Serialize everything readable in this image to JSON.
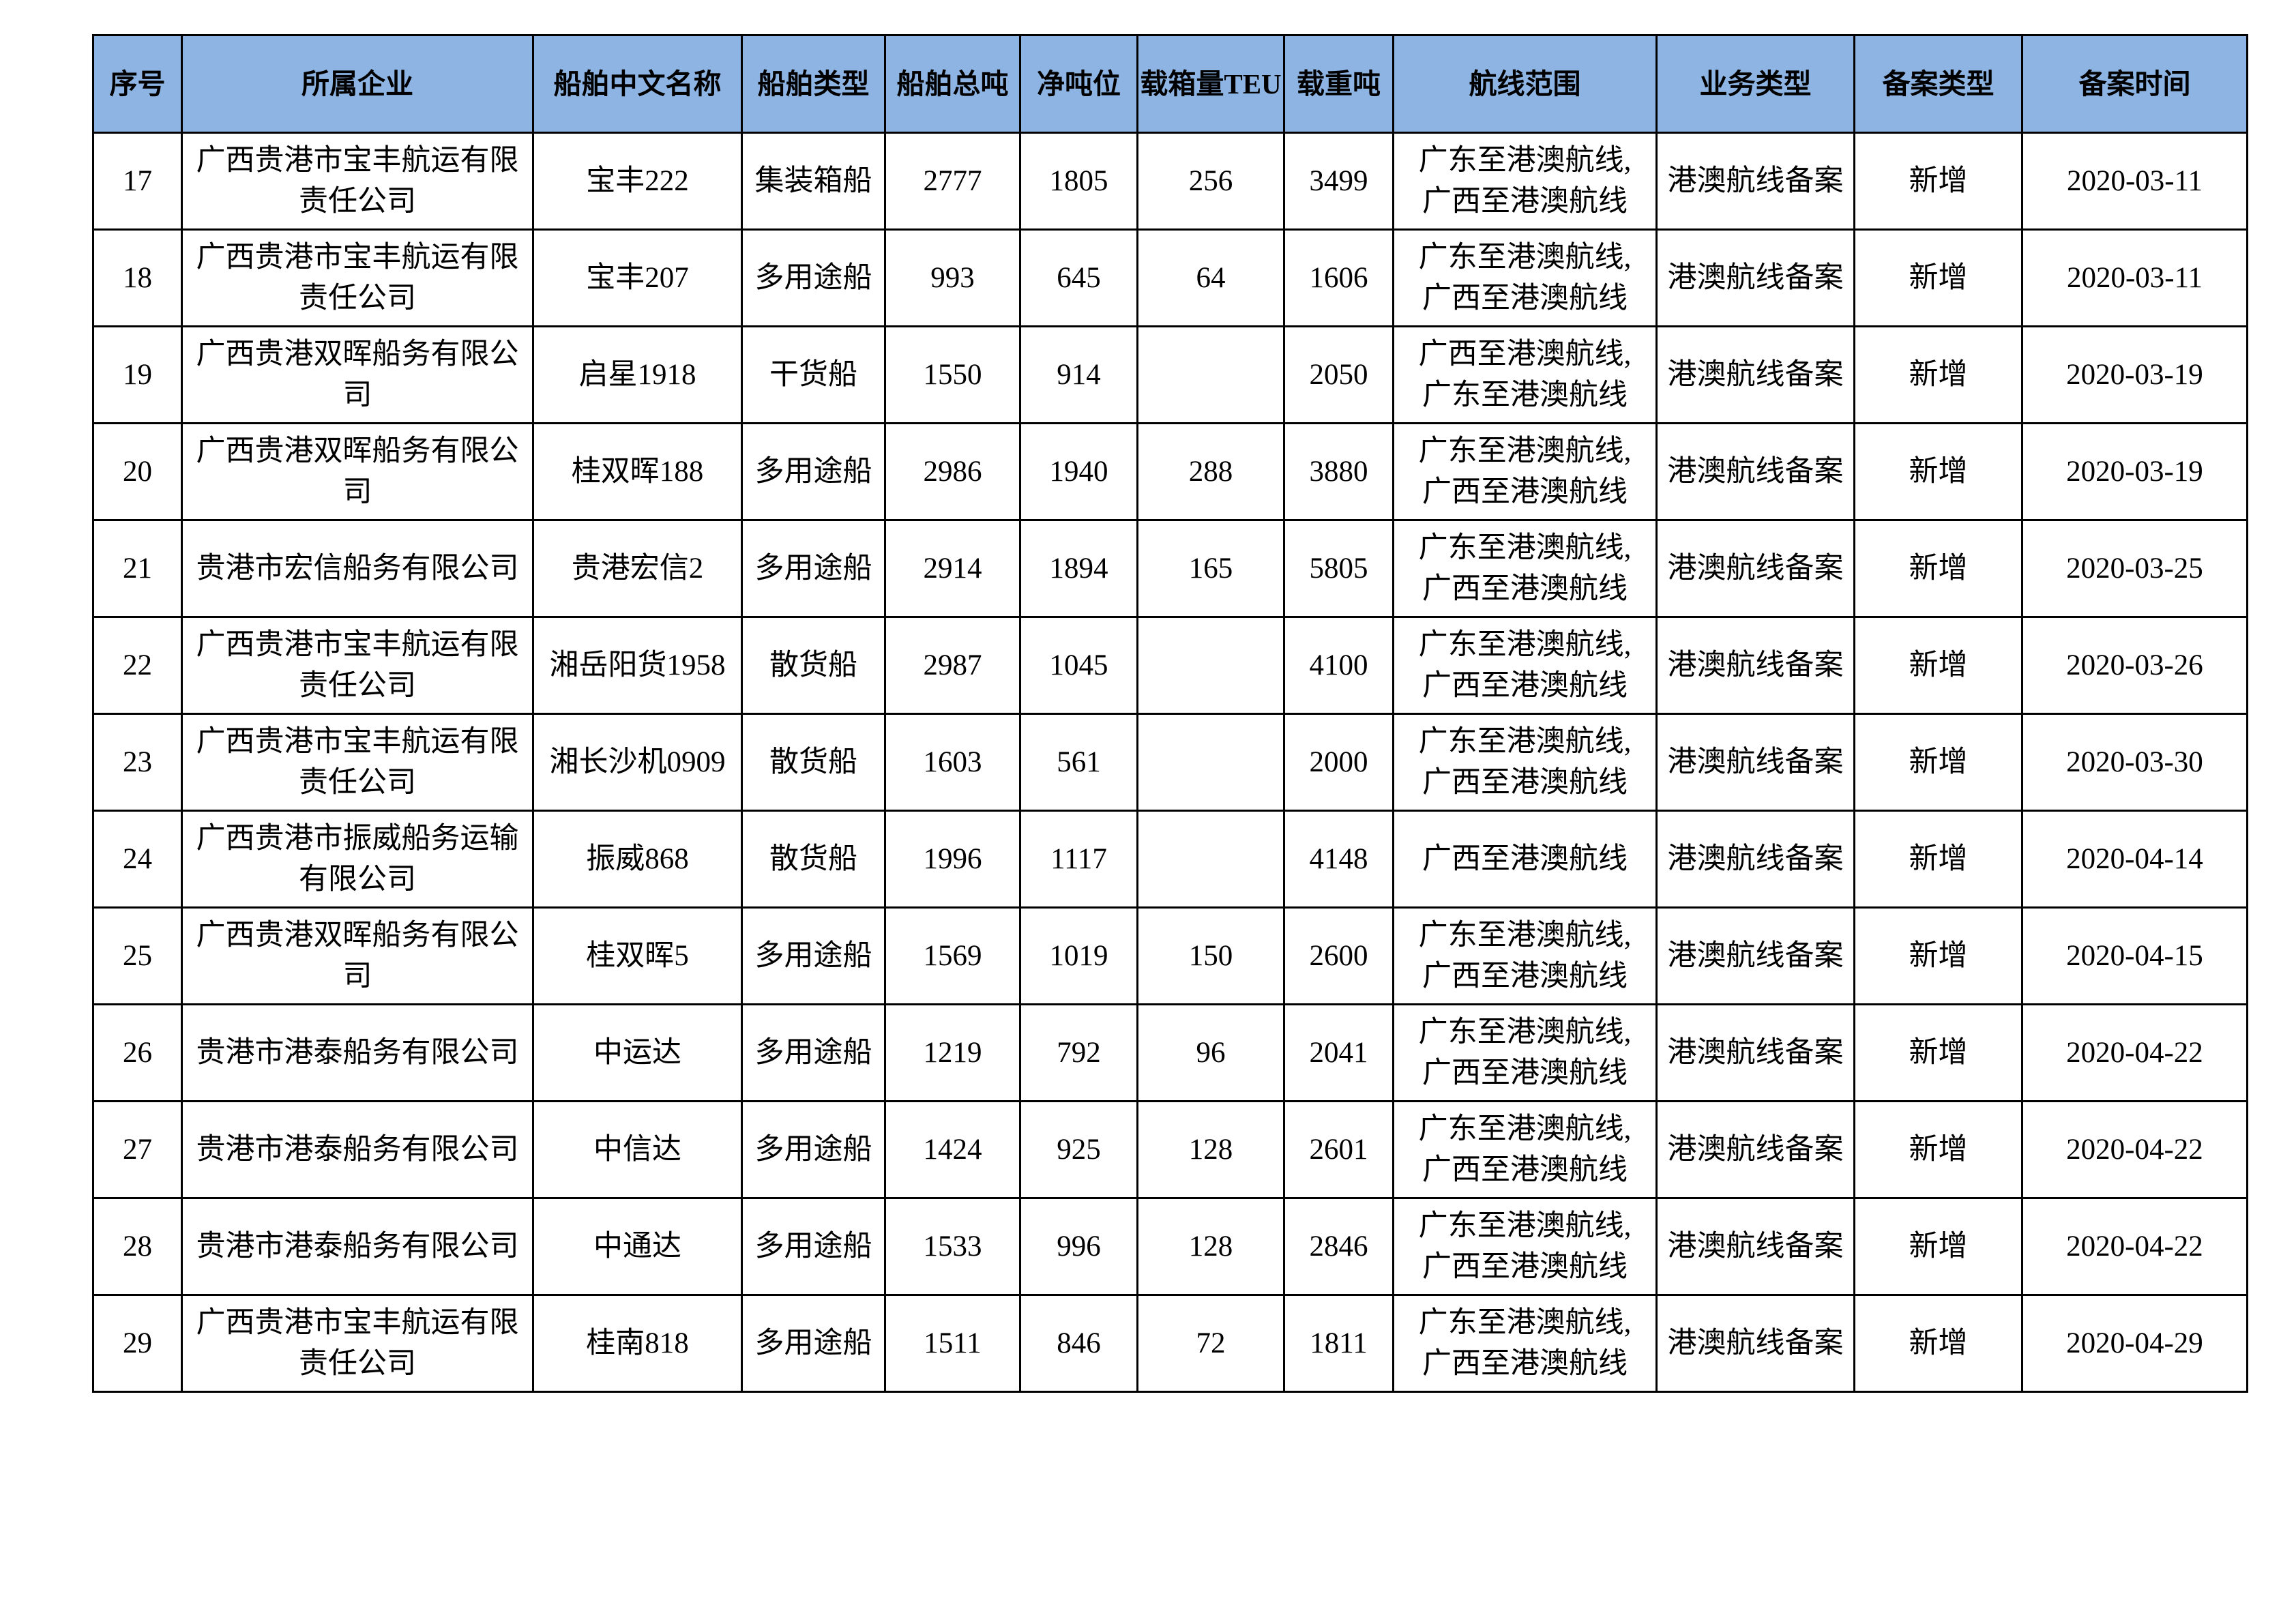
{
  "table": {
    "columns": [
      {
        "key": "seq",
        "label": "序号"
      },
      {
        "key": "company",
        "label": "所属企业"
      },
      {
        "key": "ship_name",
        "label": "船舶中文名称"
      },
      {
        "key": "ship_type",
        "label": "船舶类型"
      },
      {
        "key": "gross_tonnage",
        "label": "船舶总吨"
      },
      {
        "key": "net_tonnage",
        "label": "净吨位"
      },
      {
        "key": "teu",
        "label": "载箱量TEU"
      },
      {
        "key": "deadweight",
        "label": "载重吨"
      },
      {
        "key": "route",
        "label": "航线范围"
      },
      {
        "key": "business_type",
        "label": "业务类型"
      },
      {
        "key": "filing_type",
        "label": "备案类型"
      },
      {
        "key": "filing_date",
        "label": "备案时间"
      }
    ],
    "rows": [
      {
        "seq": "17",
        "company": "广西贵港市宝丰航运有限\n责任公司",
        "ship_name": "宝丰222",
        "ship_type": "集装箱船",
        "gross_tonnage": "2777",
        "net_tonnage": "1805",
        "teu": "256",
        "deadweight": "3499",
        "route": "广东至港澳航线,\n广西至港澳航线",
        "business_type": "港澳航线备案",
        "filing_type": "新增",
        "filing_date": "2020-03-11"
      },
      {
        "seq": "18",
        "company": "广西贵港市宝丰航运有限\n责任公司",
        "ship_name": "宝丰207",
        "ship_type": "多用途船",
        "gross_tonnage": "993",
        "net_tonnage": "645",
        "teu": "64",
        "deadweight": "1606",
        "route": "广东至港澳航线,\n广西至港澳航线",
        "business_type": "港澳航线备案",
        "filing_type": "新增",
        "filing_date": "2020-03-11"
      },
      {
        "seq": "19",
        "company": "广西贵港双晖船务有限公\n司",
        "ship_name": "启星1918",
        "ship_type": "干货船",
        "gross_tonnage": "1550",
        "net_tonnage": "914",
        "teu": "",
        "deadweight": "2050",
        "route": "广西至港澳航线,\n广东至港澳航线",
        "business_type": "港澳航线备案",
        "filing_type": "新增",
        "filing_date": "2020-03-19"
      },
      {
        "seq": "20",
        "company": "广西贵港双晖船务有限公\n司",
        "ship_name": "桂双晖188",
        "ship_type": "多用途船",
        "gross_tonnage": "2986",
        "net_tonnage": "1940",
        "teu": "288",
        "deadweight": "3880",
        "route": "广东至港澳航线,\n广西至港澳航线",
        "business_type": "港澳航线备案",
        "filing_type": "新增",
        "filing_date": "2020-03-19"
      },
      {
        "seq": "21",
        "company": "贵港市宏信船务有限公司",
        "ship_name": "贵港宏信2",
        "ship_type": "多用途船",
        "gross_tonnage": "2914",
        "net_tonnage": "1894",
        "teu": "165",
        "deadweight": "5805",
        "route": "广东至港澳航线,\n广西至港澳航线",
        "business_type": "港澳航线备案",
        "filing_type": "新增",
        "filing_date": "2020-03-25"
      },
      {
        "seq": "22",
        "company": "广西贵港市宝丰航运有限\n责任公司",
        "ship_name": "湘岳阳货1958",
        "ship_type": "散货船",
        "gross_tonnage": "2987",
        "net_tonnage": "1045",
        "teu": "",
        "deadweight": "4100",
        "route": "广东至港澳航线,\n广西至港澳航线",
        "business_type": "港澳航线备案",
        "filing_type": "新增",
        "filing_date": "2020-03-26"
      },
      {
        "seq": "23",
        "company": "广西贵港市宝丰航运有限\n责任公司",
        "ship_name": "湘长沙机0909",
        "ship_type": "散货船",
        "gross_tonnage": "1603",
        "net_tonnage": "561",
        "teu": "",
        "deadweight": "2000",
        "route": "广东至港澳航线,\n广西至港澳航线",
        "business_type": "港澳航线备案",
        "filing_type": "新增",
        "filing_date": "2020-03-30"
      },
      {
        "seq": "24",
        "company": "广西贵港市振威船务运输\n有限公司",
        "ship_name": "振威868",
        "ship_type": "散货船",
        "gross_tonnage": "1996",
        "net_tonnage": "1117",
        "teu": "",
        "deadweight": "4148",
        "route": "广西至港澳航线",
        "business_type": "港澳航线备案",
        "filing_type": "新增",
        "filing_date": "2020-04-14"
      },
      {
        "seq": "25",
        "company": "广西贵港双晖船务有限公\n司",
        "ship_name": "桂双晖5",
        "ship_type": "多用途船",
        "gross_tonnage": "1569",
        "net_tonnage": "1019",
        "teu": "150",
        "deadweight": "2600",
        "route": "广东至港澳航线,\n广西至港澳航线",
        "business_type": "港澳航线备案",
        "filing_type": "新增",
        "filing_date": "2020-04-15"
      },
      {
        "seq": "26",
        "company": "贵港市港泰船务有限公司",
        "ship_name": "中运达",
        "ship_type": "多用途船",
        "gross_tonnage": "1219",
        "net_tonnage": "792",
        "teu": "96",
        "deadweight": "2041",
        "route": "广东至港澳航线,\n广西至港澳航线",
        "business_type": "港澳航线备案",
        "filing_type": "新增",
        "filing_date": "2020-04-22"
      },
      {
        "seq": "27",
        "company": "贵港市港泰船务有限公司",
        "ship_name": "中信达",
        "ship_type": "多用途船",
        "gross_tonnage": "1424",
        "net_tonnage": "925",
        "teu": "128",
        "deadweight": "2601",
        "route": "广东至港澳航线,\n广西至港澳航线",
        "business_type": "港澳航线备案",
        "filing_type": "新增",
        "filing_date": "2020-04-22"
      },
      {
        "seq": "28",
        "company": "贵港市港泰船务有限公司",
        "ship_name": "中通达",
        "ship_type": "多用途船",
        "gross_tonnage": "1533",
        "net_tonnage": "996",
        "teu": "128",
        "deadweight": "2846",
        "route": "广东至港澳航线,\n广西至港澳航线",
        "business_type": "港澳航线备案",
        "filing_type": "新增",
        "filing_date": "2020-04-22"
      },
      {
        "seq": "29",
        "company": "广西贵港市宝丰航运有限\n责任公司",
        "ship_name": "桂南818",
        "ship_type": "多用途船",
        "gross_tonnage": "1511",
        "net_tonnage": "846",
        "teu": "72",
        "deadweight": "1811",
        "route": "广东至港澳航线,\n广西至港澳航线",
        "business_type": "港澳航线备案",
        "filing_type": "新增",
        "filing_date": "2020-04-29"
      }
    ]
  },
  "colors": {
    "page_bg": "#FFFFFF",
    "header_bg": "#8DB4E2",
    "border": "#000000",
    "text": "#000000"
  }
}
